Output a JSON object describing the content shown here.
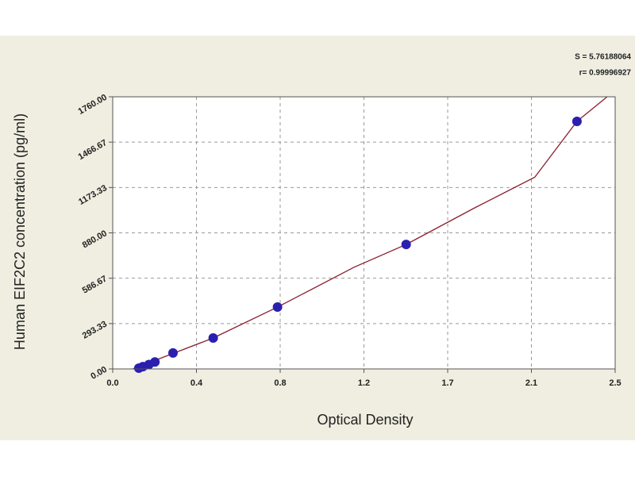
{
  "chart_data": {
    "type": "scatter",
    "x_label": "Optical Density",
    "y_label": "Human EIF2C2 concentration (pg/ml)",
    "annotations": [
      "S = 5.76188064",
      "r= 0.99996927"
    ],
    "xlim": [
      0,
      2.5
    ],
    "xticks": [
      {
        "value": 0,
        "label": "0.0"
      },
      {
        "value": 0.4167,
        "label": "0.4"
      },
      {
        "value": 0.8333,
        "label": "0.8"
      },
      {
        "value": 1.25,
        "label": "1.2"
      },
      {
        "value": 1.6667,
        "label": "1.7"
      },
      {
        "value": 2.0833,
        "label": "2.1"
      },
      2.5
    ],
    "ylim": [
      0,
      1760
    ],
    "yticks": [
      {
        "value": 0,
        "label": "0.00"
      },
      293.33,
      586.67,
      {
        "value": 880,
        "label": "880.00"
      },
      1173.33,
      1466.67,
      {
        "value": 1760,
        "label": "1760.00"
      }
    ],
    "grid": true,
    "series": [
      {
        "type": "line",
        "color": "#8b1f2f",
        "x": [
          0.1,
          0.3,
          0.5,
          0.82,
          1.2,
          1.46,
          1.8,
          2.1,
          2.31,
          2.46
        ],
        "values": [
          0,
          100,
          200,
          400,
          657,
          805,
          1041,
          1240,
          1601,
          1760
        ]
      },
      {
        "type": "scatter",
        "color": "#2b1fb0",
        "x": [
          0.13,
          0.15,
          0.18,
          0.21,
          0.3,
          0.5,
          0.82,
          1.46,
          2.31
        ],
        "values": [
          5,
          15,
          28,
          45,
          103,
          200,
          400,
          805,
          1601
        ]
      }
    ]
  }
}
